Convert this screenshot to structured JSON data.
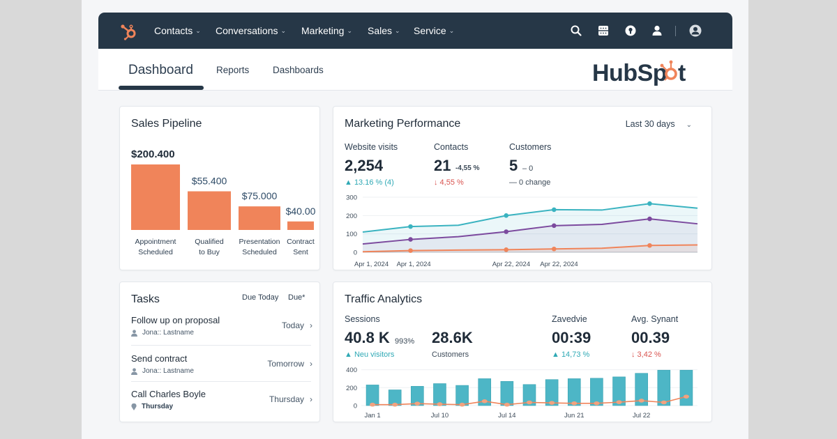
{
  "nav": {
    "items": [
      {
        "label": "Contacts"
      },
      {
        "label": "Conversations"
      },
      {
        "label": "Marketing"
      },
      {
        "label": "Sales"
      },
      {
        "label": "Service"
      }
    ],
    "chevron": "⌄",
    "icons": [
      "search-icon",
      "apps-grid-icon",
      "help-icon",
      "user-icon",
      "account-avatar-icon"
    ]
  },
  "subheader": {
    "tabs": [
      {
        "label": "Dashboard",
        "active": true
      },
      {
        "label": "Reports"
      },
      {
        "label": "Dashboards"
      }
    ],
    "brand": "HubSpot"
  },
  "colors": {
    "nav_bg": "#263747",
    "brand_orange": "#f0845a",
    "teal": "#3ab3c0",
    "purple": "#7c4a9e",
    "negative": "#d9534f"
  },
  "sales_pipeline": {
    "title": "Sales Pipeline",
    "stages": [
      {
        "value_label": "$200.400",
        "label_line1": "Appointment",
        "label_line2": "Scheduled",
        "relative": 1.0
      },
      {
        "value_label": "$55.400",
        "label_line1": "Qualified",
        "label_line2": "to Buy",
        "relative": 0.59
      },
      {
        "value_label": "$75.000",
        "label_line1": "Presentation",
        "label_line2": "Scheduled",
        "relative": 0.36
      },
      {
        "value_label": "$40.00",
        "label_line1": "Contract",
        "label_line2": "Sent",
        "relative": 0.13
      }
    ]
  },
  "marketing": {
    "title": "Marketing Performance",
    "range": "Last 30 days",
    "kpis": [
      {
        "label": "Website visits",
        "value": "2,254",
        "delta_inline": "",
        "sub": "▲ 13.16 % (4)",
        "trend": "pos"
      },
      {
        "label": "Contacts",
        "value": "21",
        "delta_inline": "-4,55 %",
        "sub": "↓ 4,55 %",
        "trend": "neg"
      },
      {
        "label": "Customers",
        "value": "5",
        "delta_inline": "– 0",
        "sub": "— 0 change",
        "trend": "neutral"
      }
    ]
  },
  "chart_data": [
    {
      "type": "line",
      "title": "Marketing Performance",
      "x": [
        "Apr 1, 2024",
        "Apr 1, 2024",
        "",
        "Apr 22, 2024",
        "Apr 22, 2024",
        "",
        "",
        ""
      ],
      "x_tick_labels": [
        "Apr 1, 2024",
        "Apr 1, 2024",
        "Apr 22, 2024",
        "Apr 22, 2024"
      ],
      "yticks": [
        0,
        100,
        200,
        300
      ],
      "ylim": [
        0,
        300
      ],
      "grid": true,
      "series": [
        {
          "name": "Website visits",
          "color": "#3ab3c0",
          "values": [
            110,
            140,
            147,
            200,
            232,
            230,
            265,
            240
          ],
          "markers": [
            1,
            3,
            4,
            6
          ]
        },
        {
          "name": "Contacts",
          "color": "#7c4a9e",
          "values": [
            45,
            70,
            85,
            112,
            145,
            152,
            182,
            155
          ],
          "markers": [
            1,
            3,
            4,
            6
          ]
        },
        {
          "name": "Customers",
          "color": "#f0845a",
          "values": [
            3,
            9,
            12,
            14,
            18,
            22,
            37,
            40
          ],
          "markers": [
            1,
            3,
            4,
            6
          ]
        }
      ]
    },
    {
      "type": "bar",
      "title": "Traffic Analytics",
      "categories": [
        "Jan 1",
        "",
        "",
        "Jul 10",
        "",
        "",
        "Jul 14",
        "",
        "",
        "Jun 21",
        "",
        "",
        "Jul 22",
        "",
        ""
      ],
      "x_tick_labels": [
        "Jan 1",
        "Jul 10",
        "Jul 14",
        "Jun 21",
        "Jul 22"
      ],
      "yticks": [
        0,
        200,
        400
      ],
      "ylim": [
        0,
        420
      ],
      "grid": true,
      "series": [
        {
          "name": "Sessions",
          "color": "#4db6c6",
          "values": [
            230,
            175,
            215,
            245,
            225,
            300,
            270,
            235,
            290,
            300,
            305,
            320,
            360,
            395,
            395
          ]
        },
        {
          "name": "New visitors",
          "color": "#f0845a",
          "values": [
            10,
            10,
            22,
            15,
            10,
            48,
            10,
            35,
            30,
            25,
            25,
            38,
            55,
            35,
            100
          ]
        }
      ]
    }
  ],
  "tasks": {
    "title": "Tasks",
    "filters": [
      "Due Today",
      "Due*"
    ],
    "items": [
      {
        "title": "Follow up on proposal",
        "meta": "Jona:: Lastname",
        "meta_icon": "person-icon",
        "due": "Today"
      },
      {
        "title": "Send contract",
        "meta": "Jona:: Lastname",
        "meta_icon": "person-icon",
        "due": "Tomorrow"
      },
      {
        "title": "Call Charles Boyle",
        "meta": "Thursday",
        "meta_icon": "location-pin-icon",
        "due": "Thursday"
      }
    ],
    "chevron": "›"
  },
  "traffic": {
    "title": "Traffic Analytics",
    "kpis": [
      {
        "label": "Sessions",
        "value": "40.8 K",
        "delta_inline": "993%",
        "sub": "▲ Neu visitors",
        "trend": "pos"
      },
      {
        "label": "",
        "value": "28.6K",
        "delta_inline": "",
        "sub": "Customers",
        "trend": "neutral"
      },
      {
        "label": "Zavedvie",
        "value": "00:39",
        "delta_inline": "",
        "sub": "▲ 14,73 %",
        "trend": "pos"
      },
      {
        "label": "Avg. Synant",
        "value": "00.39",
        "delta_inline": "",
        "sub": "↓ 3,42 %",
        "trend": "neg"
      }
    ]
  }
}
